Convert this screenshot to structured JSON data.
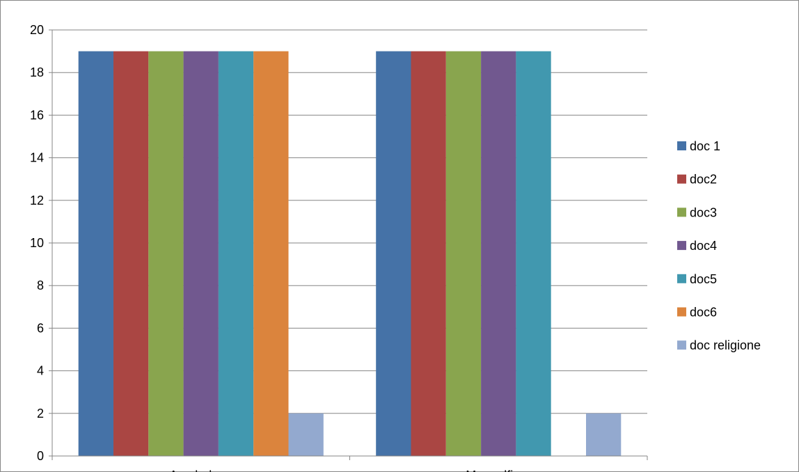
{
  "chart_data": {
    "type": "bar",
    "title": "",
    "xlabel": "",
    "ylabel": "",
    "categories": [
      "Arcobaleno",
      "Mongolfiera"
    ],
    "ylim": [
      0,
      20
    ],
    "yticks": [
      0,
      2,
      4,
      6,
      8,
      10,
      12,
      14,
      16,
      18,
      20
    ],
    "grid": true,
    "legend_position": "right",
    "series": [
      {
        "name": "doc 1",
        "color": "#4572A7",
        "values": [
          19,
          19
        ]
      },
      {
        "name": "doc2",
        "color": "#AA4643",
        "values": [
          19,
          19
        ]
      },
      {
        "name": "doc3",
        "color": "#89A54E",
        "values": [
          19,
          19
        ]
      },
      {
        "name": "doc4",
        "color": "#71588F",
        "values": [
          19,
          19
        ]
      },
      {
        "name": "doc5",
        "color": "#4198AF",
        "values": [
          19,
          19
        ]
      },
      {
        "name": "doc6",
        "color": "#DB843D",
        "values": [
          19,
          0
        ]
      },
      {
        "name": "doc religione",
        "color": "#93A9CF",
        "values": [
          2,
          2
        ]
      }
    ]
  }
}
